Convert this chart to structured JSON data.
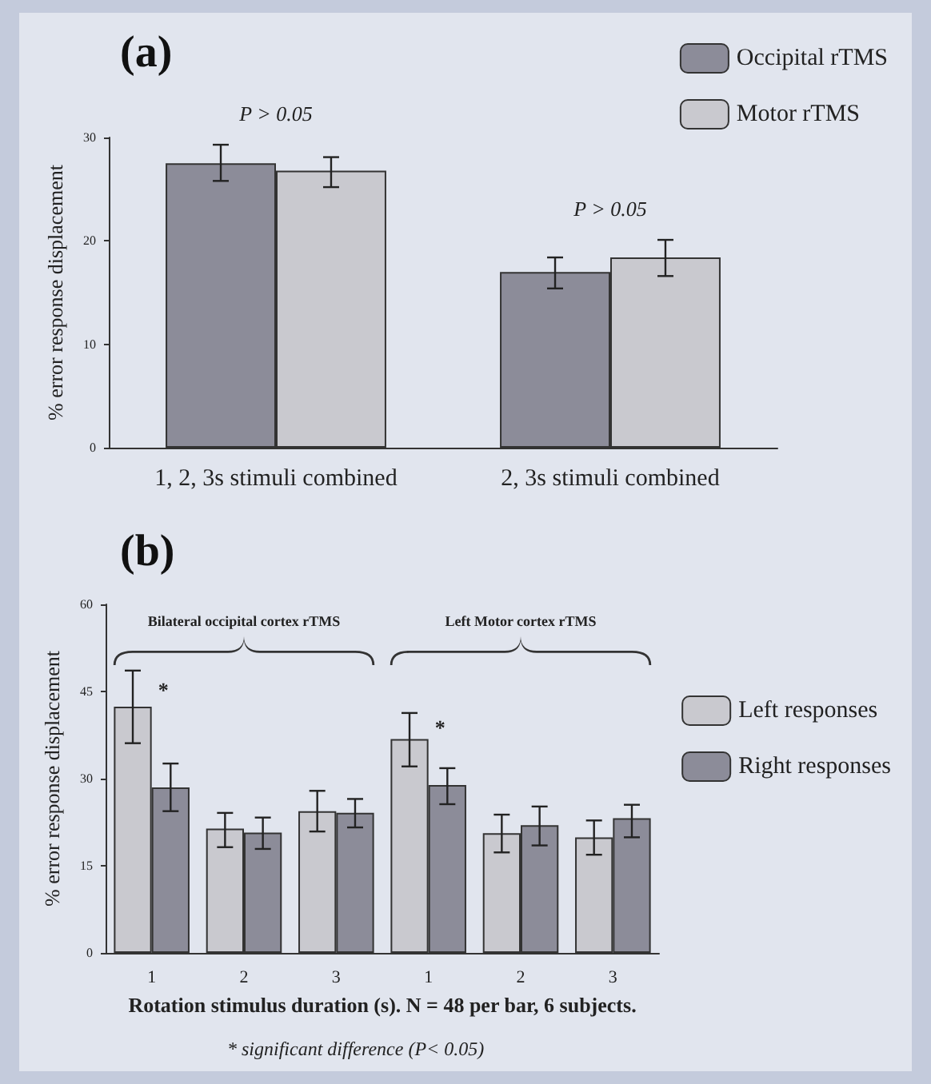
{
  "chart_data": [
    {
      "type": "bar",
      "title": "(a)",
      "ylabel": "% error response displacement",
      "categories": [
        "1, 2, 3s stimuli combined",
        "2, 3s stimuli combined"
      ],
      "series": [
        {
          "name": "Occipital rTMS",
          "color": "#8c8c99",
          "values": [
            27.5,
            17.0
          ],
          "errors": [
            [
              25.8,
              29.3
            ],
            [
              15.4,
              18.4
            ]
          ]
        },
        {
          "name": "Motor rTMS",
          "color": "#c9c9cf",
          "values": [
            26.8,
            18.4
          ],
          "errors": [
            [
              25.2,
              28.1
            ],
            [
              16.6,
              20.1
            ]
          ]
        }
      ],
      "ylim": [
        0,
        30
      ],
      "yticks": [
        0,
        10,
        20,
        30
      ],
      "grid": false,
      "legend": "top right",
      "annotations": [
        "P > 0.05",
        "P > 0.05"
      ]
    },
    {
      "type": "bar",
      "title": "(b)",
      "xlabel": "Rotation stimulus duration (s). N = 48 per bar, 6 subjects.",
      "ylabel": "% error response displacement",
      "categories": [
        "1",
        "2",
        "3",
        "1",
        "2",
        "3"
      ],
      "series": [
        {
          "name": "Left responses",
          "color": "#c9c9cf",
          "values": [
            42.4,
            21.4,
            24.4,
            36.8,
            20.6,
            19.9
          ],
          "errors": [
            [
              36.1,
              48.6
            ],
            [
              18.2,
              24.1
            ],
            [
              20.9,
              27.9
            ],
            [
              32.1,
              41.3
            ],
            [
              17.3,
              23.8
            ],
            [
              16.9,
              22.8
            ]
          ]
        },
        {
          "name": "Right responses",
          "color": "#8c8c99",
          "values": [
            28.5,
            20.7,
            24.1,
            28.9,
            22.0,
            23.2
          ],
          "errors": [
            [
              24.4,
              32.6
            ],
            [
              17.9,
              23.3
            ],
            [
              21.6,
              26.5
            ],
            [
              25.6,
              31.8
            ],
            [
              18.5,
              25.2
            ],
            [
              19.9,
              25.5
            ]
          ]
        }
      ],
      "ylim": [
        0,
        60
      ],
      "yticks": [
        0,
        15,
        30,
        45,
        60
      ],
      "grid": false,
      "legend": "right",
      "annotations": [
        "Bilateral occipital cortex rTMS",
        "Left Motor cortex rTMS",
        "*",
        "*",
        "* significant difference (P< 0.05)"
      ]
    }
  ]
}
